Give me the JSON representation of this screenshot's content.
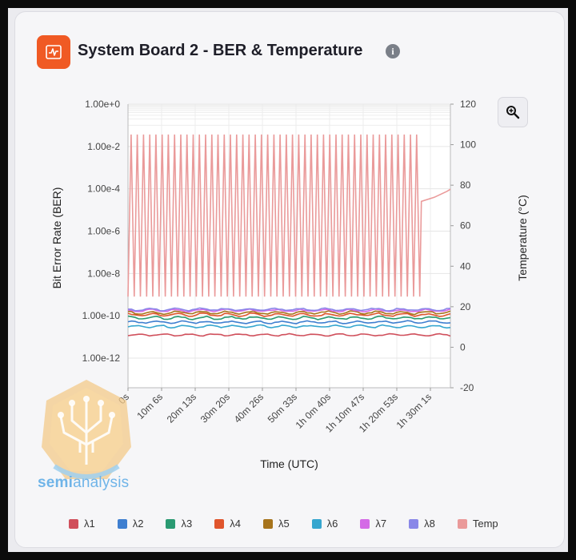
{
  "header": {
    "title": "System Board 2 - BER & Temperature",
    "info_glyph": "i",
    "icon": "activity-icon",
    "icon_color": "#f05a24"
  },
  "toolbar": {
    "zoom_icon": "zoom-in-icon"
  },
  "watermark": {
    "text_prefix": "semi",
    "text_suffix": "analysis"
  },
  "chart_data": {
    "type": "line",
    "xlabel": "Time (UTC)",
    "ylabel_left": "Bit Error Rate (BER)",
    "ylabel_right": "Temperature (°C)",
    "x_ticks": [
      "0s",
      "10m 6s",
      "20m 13s",
      "30m 20s",
      "40m 26s",
      "50m 33s",
      "1h 0m 40s",
      "1h 10m 47s",
      "1h 20m 53s",
      "1h 30m 1s"
    ],
    "y_left_ticks": [
      "1.00e+0",
      "1.00e-2",
      "1.00e-4",
      "1.00e-6",
      "1.00e-8",
      "1.00e-10",
      "1.00e-12"
    ],
    "y_left_scale": "log",
    "y_left_exponent_range": [
      -13.4,
      0
    ],
    "y_right_ticks": [
      120,
      100,
      80,
      60,
      40,
      20,
      0,
      -20
    ],
    "y_right_range": [
      -20,
      120
    ],
    "grid": true,
    "legend_position": "bottom",
    "series": [
      {
        "name": "λ1",
        "color": "#d0505c",
        "axis": "left",
        "log10_level": -10.9,
        "jitter": 0.04
      },
      {
        "name": "λ2",
        "color": "#3f7fd0",
        "axis": "left",
        "log10_level": -10.3,
        "jitter": 0.05
      },
      {
        "name": "λ3",
        "color": "#2a9a72",
        "axis": "left",
        "log10_level": -10.1,
        "jitter": 0.06
      },
      {
        "name": "λ4",
        "color": "#e0552c",
        "axis": "left",
        "log10_level": -9.95,
        "jitter": 0.06
      },
      {
        "name": "λ5",
        "color": "#a7741c",
        "axis": "left",
        "log10_level": -9.85,
        "jitter": 0.06
      },
      {
        "name": "λ6",
        "color": "#36a6cf",
        "axis": "left",
        "log10_level": -10.5,
        "jitter": 0.05
      },
      {
        "name": "λ7",
        "color": "#d46ae6",
        "axis": "left",
        "log10_level": -9.75,
        "jitter": 0.05
      },
      {
        "name": "λ8",
        "color": "#8a88e8",
        "axis": "left",
        "log10_level": -9.7,
        "jitter": 0.05
      },
      {
        "name": "Temp",
        "color": "#ea9a9a",
        "axis": "right",
        "oscillation": {
          "high": 105,
          "low": 25,
          "cycles": 47,
          "end_fraction": 0.905
        },
        "tail": [
          [
            0.91,
            72
          ],
          [
            0.95,
            74
          ],
          [
            0.99,
            77
          ],
          [
            1.0,
            78
          ]
        ]
      }
    ]
  }
}
